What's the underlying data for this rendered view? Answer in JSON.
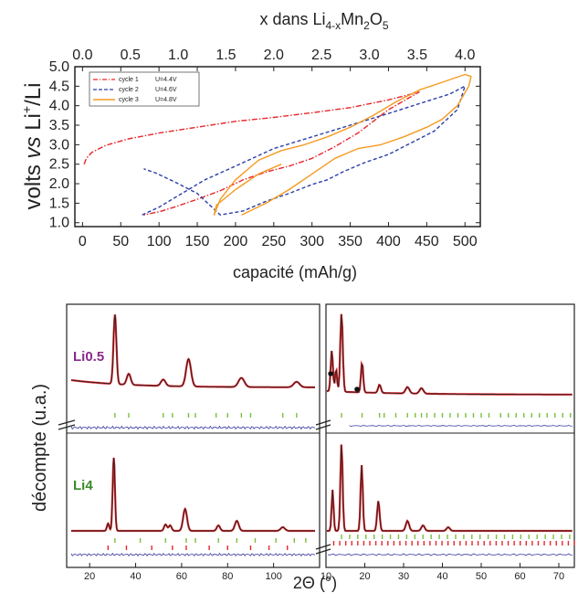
{
  "chart_data": [
    {
      "type": "line",
      "top_axis_title_prefix": "x dans Li",
      "top_axis_title_sub": "4-x",
      "top_axis_title_mid": "Mn",
      "top_axis_title_sub2": "2",
      "top_axis_title_mid2": "O",
      "top_axis_title_sub3": "5",
      "ylabel_part1": "volts ",
      "ylabel_vs": "vs",
      "ylabel_part2": " Li",
      "ylabel_sup": "+",
      "ylabel_part3": "/Li",
      "xlabel": "capacité (mAh/g)",
      "xlim": [
        -10,
        520
      ],
      "ylim": [
        0.9,
        5.0
      ],
      "x_ticks": [
        "0",
        "50",
        "100",
        "150",
        "200",
        "250",
        "300",
        "350",
        "400",
        "450",
        "500"
      ],
      "y_ticks": [
        "1.0",
        "1.5",
        "2.0",
        "2.5",
        "3.0",
        "3.5",
        "4.0",
        "4.5",
        "5.0"
      ],
      "top_ticks": [
        "0.0",
        "0.5",
        "1.0",
        "1.5",
        "2.0",
        "2.5",
        "3.0",
        "3.5",
        "4.0"
      ],
      "series": [
        {
          "name": "cycle 1",
          "voltage_label": "U=4.4V",
          "color": "#e8262b",
          "dash": "dashdot",
          "x": [
            2,
            5,
            12,
            30,
            60,
            100,
            150,
            200,
            250,
            300,
            350,
            400,
            440,
            400,
            360,
            330,
            300,
            270,
            240,
            210,
            180,
            150,
            120,
            100,
            80
          ],
          "y": [
            2.5,
            2.65,
            2.8,
            2.98,
            3.15,
            3.3,
            3.45,
            3.6,
            3.7,
            3.82,
            3.95,
            4.15,
            4.35,
            3.9,
            3.3,
            2.95,
            2.65,
            2.45,
            2.3,
            2.1,
            1.82,
            1.6,
            1.4,
            1.28,
            1.2
          ]
        },
        {
          "name": "cycle 2",
          "voltage_label": "U=4.6V",
          "color": "#2b3fa8",
          "dash": "dash",
          "x": [
            78,
            100,
            130,
            160,
            200,
            250,
            300,
            350,
            400,
            440,
            480,
            500,
            490,
            460,
            430,
            400,
            370,
            340,
            320,
            300,
            270,
            240,
            210,
            180,
            150,
            120,
            95,
            80
          ],
          "y": [
            1.2,
            1.4,
            1.75,
            2.1,
            2.45,
            2.9,
            3.2,
            3.5,
            3.8,
            4.05,
            4.3,
            4.5,
            3.9,
            3.35,
            3.05,
            2.75,
            2.55,
            2.3,
            2.1,
            1.98,
            1.75,
            1.55,
            1.3,
            1.2,
            1.75,
            2.05,
            2.28,
            2.38
          ]
        },
        {
          "name": "cycle 3",
          "voltage_label": "U=4.8V",
          "color": "#f59a20",
          "dash": "solid",
          "x": [
            208,
            240,
            270,
            300,
            330,
            360,
            390,
            420,
            450,
            470,
            490,
            505,
            508,
            500,
            470,
            440,
            410,
            380,
            350,
            320,
            290,
            260,
            230,
            200,
            180,
            172,
            175,
            200,
            230,
            260
          ],
          "y": [
            1.2,
            1.5,
            1.85,
            2.25,
            2.65,
            2.9,
            3.0,
            3.2,
            3.45,
            3.65,
            4.0,
            4.5,
            4.75,
            4.8,
            4.6,
            4.4,
            4.1,
            3.75,
            3.45,
            3.2,
            3.0,
            2.85,
            2.6,
            2.1,
            1.6,
            1.2,
            1.45,
            1.85,
            2.25,
            2.5
          ]
        }
      ]
    },
    {
      "type": "line",
      "ylabel": "décompte (u.a.)",
      "xlabel": "2Θ (°)",
      "left_x_ticks": [
        "20",
        "40",
        "60",
        "80",
        "100"
      ],
      "left_xlim": [
        10,
        120
      ],
      "right_x_ticks": [
        "10",
        "20",
        "30",
        "40",
        "50",
        "60",
        "70"
      ],
      "right_xlim": [
        10,
        74
      ],
      "panels": [
        {
          "label": "Li0.5",
          "label_color": "#8a2a8a"
        },
        {
          "label": "Li4",
          "label_color": "#3a8a2a"
        }
      ],
      "colors": {
        "observed": "#e8262b",
        "calculated": "#222222",
        "difference": "#3a3aa0",
        "bragg_green": "#7bbf3a",
        "bragg_red": "#e8262b"
      }
    }
  ]
}
